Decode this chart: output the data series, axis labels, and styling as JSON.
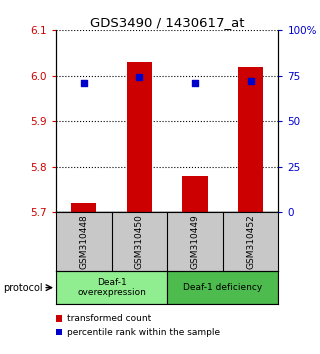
{
  "title": "GDS3490 / 1430617_at",
  "samples": [
    "GSM310448",
    "GSM310450",
    "GSM310449",
    "GSM310452"
  ],
  "transformed_counts": [
    5.72,
    6.03,
    5.78,
    6.02
  ],
  "percentile_ranks": [
    71,
    74,
    71,
    72
  ],
  "ylim_left": [
    5.7,
    6.1
  ],
  "ylim_right": [
    0,
    100
  ],
  "yticks_left": [
    5.7,
    5.8,
    5.9,
    6.0,
    6.1
  ],
  "yticks_right": [
    0,
    25,
    50,
    75,
    100
  ],
  "ytick_labels_right": [
    "0",
    "25",
    "50",
    "75",
    "100%"
  ],
  "groups": [
    {
      "label": "Deaf-1\noverexpression",
      "samples": [
        0,
        1
      ],
      "color": "#90ee90"
    },
    {
      "label": "Deaf-1 deficiency",
      "samples": [
        2,
        3
      ],
      "color": "#4dbb4d"
    }
  ],
  "bar_color": "#cc0000",
  "dot_color": "#0000cc",
  "bar_width": 0.45,
  "dot_size": 25,
  "axis_color_left": "#cc0000",
  "axis_color_right": "#0000cc",
  "sample_box_color": "#c8c8c8",
  "protocol_label": "protocol",
  "legend_items": [
    {
      "color": "#cc0000",
      "label": "transformed count"
    },
    {
      "color": "#0000cc",
      "label": "percentile rank within the sample"
    }
  ]
}
